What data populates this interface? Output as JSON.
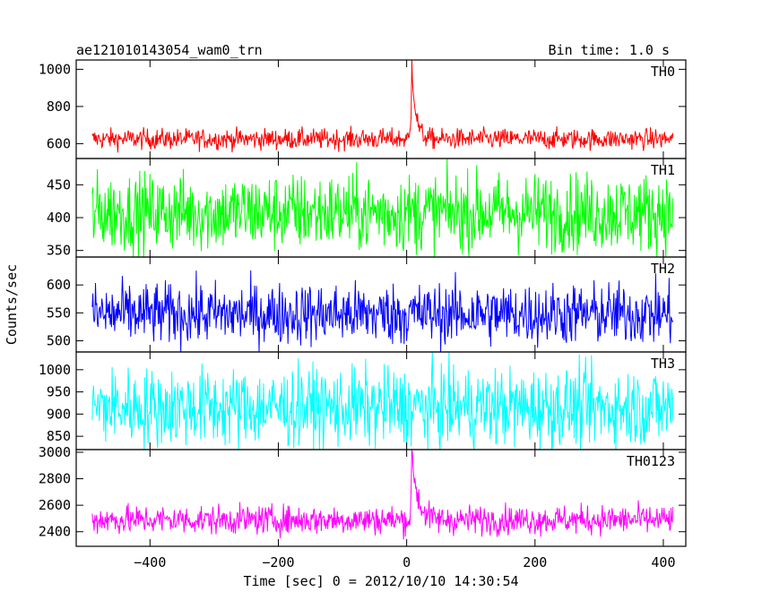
{
  "header": {
    "title": "ae121010143054_wam0_trn",
    "bin_time": "Bin time: 1.0 s"
  },
  "axes": {
    "ylabel": "Counts/sec",
    "xlabel": "Time [sec] 0 = 2012/10/10 14:30:54"
  },
  "chart_data": {
    "type": "line",
    "xlim": [
      -515,
      435
    ],
    "x_range": [
      -490,
      415
    ],
    "x_ticks": [
      -400,
      -200,
      0,
      200,
      400
    ],
    "x_tick_labels": [
      "−400",
      "−200",
      "0",
      "200",
      "400"
    ],
    "peak_time": 8,
    "series": [
      {
        "name": "TH0",
        "color": "#ff0000",
        "ylim": [
          520,
          1050
        ],
        "y_ticks": [
          600,
          800,
          1000
        ],
        "baseline": 625,
        "noise": 28,
        "peak": 1045,
        "decay": 6
      },
      {
        "name": "TH1",
        "color": "#00ff00",
        "ylim": [
          340,
          490
        ],
        "y_ticks": [
          350,
          400,
          450
        ],
        "baseline": 408,
        "noise": 30,
        "peak": 0,
        "decay": 6
      },
      {
        "name": "TH2",
        "color": "#0000ff",
        "ylim": [
          480,
          650
        ],
        "y_ticks": [
          500,
          550,
          600
        ],
        "baseline": 548,
        "noise": 28,
        "peak": 0,
        "decay": 6
      },
      {
        "name": "TH3",
        "color": "#00ffff",
        "ylim": [
          820,
          1040
        ],
        "y_ticks": [
          850,
          900,
          950,
          1000
        ],
        "baseline": 915,
        "noise": 45,
        "peak": 0,
        "decay": 6
      },
      {
        "name": "TH0123",
        "color": "#ff00ff",
        "ylim": [
          2290,
          3020
        ],
        "y_ticks": [
          2400,
          2600,
          2800,
          3000
        ],
        "baseline": 2490,
        "noise": 55,
        "peak": 2990,
        "decay": 9
      }
    ]
  }
}
